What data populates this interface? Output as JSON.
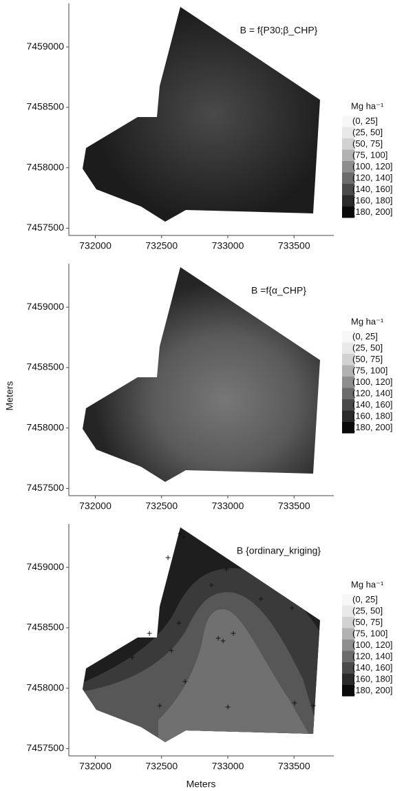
{
  "chart_data": [
    {
      "type": "map",
      "title": "B = f{P30;β_CHP}",
      "xlim": [
        731800,
        733800
      ],
      "ylim": [
        7457440,
        7459360
      ],
      "xticks": [
        732000,
        732500,
        733000,
        733500
      ],
      "yticks": [
        7457500,
        7458000,
        7458500,
        7459000
      ],
      "legend_title": "Mg ha⁻¹",
      "legend": [
        {
          "name": "(0, 25]",
          "color": "#f7f7f7"
        },
        {
          "name": "(25, 50]",
          "color": "#e9e9e9"
        },
        {
          "name": "(50, 75]",
          "color": "#d2d2d2"
        },
        {
          "name": "(75, 100]",
          "color": "#b2b2b2"
        },
        {
          "name": "(100, 120]",
          "color": "#8e8e8e"
        },
        {
          "name": "(120, 140]",
          "color": "#6c6c6c"
        },
        {
          "name": "(140, 160]",
          "color": "#4a4a4a"
        },
        {
          "name": "(160, 180]",
          "color": "#2a2a2a"
        },
        {
          "name": "(180, 200]",
          "color": "#0a0a0a"
        }
      ]
    },
    {
      "type": "map",
      "title": "B =f{α_CHP}",
      "ylabel": "Meters",
      "xlim": [
        731800,
        733800
      ],
      "ylim": [
        7457440,
        7459360
      ],
      "xticks": [
        732000,
        732500,
        733000,
        733500
      ],
      "yticks": [
        7457500,
        7458000,
        7458500,
        7459000
      ],
      "legend_title": "Mg ha⁻¹",
      "legend": [
        {
          "name": "(0, 25]",
          "color": "#f7f7f7"
        },
        {
          "name": "(25, 50]",
          "color": "#e9e9e9"
        },
        {
          "name": "(50, 75]",
          "color": "#d2d2d2"
        },
        {
          "name": "(75, 100]",
          "color": "#b2b2b2"
        },
        {
          "name": "(100, 120]",
          "color": "#8e8e8e"
        },
        {
          "name": "(120, 140]",
          "color": "#6c6c6c"
        },
        {
          "name": "(140, 160]",
          "color": "#4a4a4a"
        },
        {
          "name": "(160, 180]",
          "color": "#2a2a2a"
        },
        {
          "name": "(180, 200]",
          "color": "#0a0a0a"
        }
      ]
    },
    {
      "type": "map",
      "title": "B {ordinary_kriging}",
      "xlabel": "Meters",
      "xlim": [
        731800,
        733800
      ],
      "ylim": [
        7457440,
        7459360
      ],
      "xticks": [
        732000,
        732500,
        733000,
        733500
      ],
      "yticks": [
        7457500,
        7458000,
        7458500,
        7459000
      ],
      "legend_title": "Mg ha⁻¹",
      "legend": [
        {
          "name": "(0, 25]",
          "color": "#f7f7f7"
        },
        {
          "name": "(25, 50]",
          "color": "#e9e9e9"
        },
        {
          "name": "(50, 75]",
          "color": "#d2d2d2"
        },
        {
          "name": "(75, 100]",
          "color": "#b2b2b2"
        },
        {
          "name": "(100, 120]",
          "color": "#8e8e8e"
        },
        {
          "name": "(120, 140]",
          "color": "#6c6c6c"
        },
        {
          "name": "(140, 160]",
          "color": "#4a4a4a"
        },
        {
          "name": "(160, 180]",
          "color": "#2a2a2a"
        },
        {
          "name": "(180, 200]",
          "color": "#0a0a0a"
        }
      ]
    }
  ]
}
